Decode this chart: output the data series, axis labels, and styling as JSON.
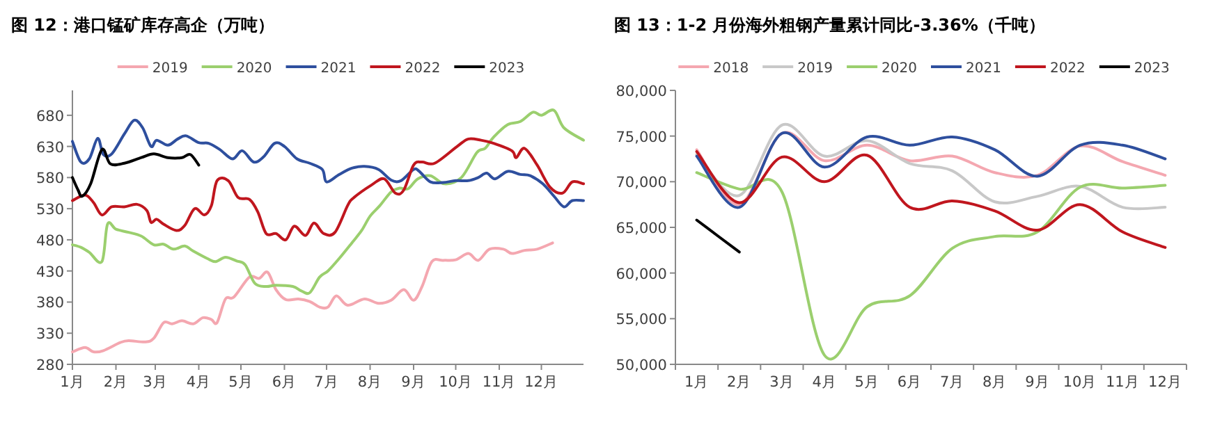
{
  "chart_data": [
    {
      "type": "line",
      "title": "图 12：港口锰矿库存高企（万吨）",
      "legend": "top",
      "xlim": [
        "--01-01",
        "--12-31"
      ],
      "xticks": [
        {
          "value": "--01-01",
          "label": "1月"
        },
        {
          "value": "--02-01",
          "label": "2月"
        },
        {
          "value": "--03-01",
          "label": "3月"
        },
        {
          "value": "--04-01",
          "label": "4月"
        },
        {
          "value": "--05-01",
          "label": "5月"
        },
        {
          "value": "--06-01",
          "label": "6月"
        },
        {
          "value": "--07-01",
          "label": "7月"
        },
        {
          "value": "--08-01",
          "label": "8月"
        },
        {
          "value": "--09-01",
          "label": "9月"
        },
        {
          "value": "--10-01",
          "label": "10月"
        },
        {
          "value": "--11-01",
          "label": "11月"
        },
        {
          "value": "--12-01",
          "label": "12月"
        }
      ],
      "ylim": [
        280,
        720
      ],
      "yticks": [
        280,
        330,
        380,
        430,
        480,
        530,
        580,
        630,
        680
      ],
      "series": [
        {
          "name": "2019",
          "color": "#f4a7b0",
          "x": [
            "--01-01",
            "--01-10",
            "--01-16",
            "--01-23",
            "--02-04",
            "--02-10",
            "--02-22",
            "--02-28",
            "--03-07",
            "--03-13",
            "--03-20",
            "--03-28",
            "--04-04",
            "--04-10",
            "--04-14",
            "--04-20",
            "--04-26",
            "--05-07",
            "--05-14",
            "--05-20",
            "--05-26",
            "--06-02",
            "--06-11",
            "--06-19",
            "--06-26",
            "--07-02",
            "--07-08",
            "--07-16",
            "--07-28",
            "--08-07",
            "--08-16",
            "--08-25",
            "--09-01",
            "--09-07",
            "--09-14",
            "--09-22",
            "--10-01",
            "--10-10",
            "--10-17",
            "--10-25",
            "--11-04",
            "--11-10",
            "--11-19",
            "--11-28",
            "--12-09"
          ],
          "values": [
            300,
            307,
            300,
            302,
            315,
            318,
            316,
            322,
            347,
            345,
            350,
            345,
            355,
            352,
            347,
            385,
            388,
            420,
            418,
            428,
            400,
            384,
            385,
            381,
            372,
            372,
            390,
            375,
            385,
            378,
            383,
            400,
            383,
            405,
            445,
            447,
            448,
            458,
            447,
            465,
            465,
            458,
            463,
            465,
            475
          ]
        },
        {
          "name": "2020",
          "color": "#9bcf6e",
          "x": [
            "--01-01",
            "--01-07",
            "--01-13",
            "--01-22",
            "--01-26",
            "--02-01",
            "--02-10",
            "--02-19",
            "--02-28",
            "--03-07",
            "--03-14",
            "--03-22",
            "--03-28",
            "--04-07",
            "--04-13",
            "--04-20",
            "--04-28",
            "--05-04",
            "--05-11",
            "--05-19",
            "--05-26",
            "--06-07",
            "--06-13",
            "--06-19",
            "--06-26",
            "--07-02",
            "--07-10",
            "--07-19",
            "--07-26",
            "--08-01",
            "--08-08",
            "--08-16",
            "--08-22",
            "--08-28",
            "--09-04",
            "--09-13",
            "--09-23",
            "--10-05",
            "--10-16",
            "--10-22",
            "--10-28",
            "--11-07",
            "--11-16",
            "--11-25",
            "--12-01",
            "--12-10",
            "--12-17",
            "--12-31"
          ],
          "values": [
            472,
            468,
            460,
            445,
            505,
            497,
            492,
            486,
            472,
            473,
            465,
            470,
            462,
            450,
            445,
            452,
            446,
            440,
            410,
            405,
            407,
            405,
            398,
            395,
            420,
            430,
            450,
            475,
            495,
            518,
            535,
            557,
            563,
            562,
            578,
            583,
            570,
            580,
            620,
            627,
            645,
            665,
            670,
            685,
            680,
            688,
            660,
            640
          ]
        },
        {
          "name": "2021",
          "color": "#2e4f9e",
          "x": [
            "--01-01",
            "--01-07",
            "--01-13",
            "--01-19",
            "--01-23",
            "--01-29",
            "--02-07",
            "--02-14",
            "--02-20",
            "--02-26",
            "--03-02",
            "--03-10",
            "--03-17",
            "--03-23",
            "--04-01",
            "--04-08",
            "--04-16",
            "--04-25",
            "--05-02",
            "--05-10",
            "--05-17",
            "--05-25",
            "--06-01",
            "--06-10",
            "--06-19",
            "--06-28",
            "--07-01",
            "--07-10",
            "--07-19",
            "--07-28",
            "--08-07",
            "--08-16",
            "--08-23",
            "--09-01",
            "--09-05",
            "--09-13",
            "--09-22",
            "--10-01",
            "--10-10",
            "--10-17",
            "--10-23",
            "--10-29",
            "--11-07",
            "--11-16",
            "--11-23",
            "--12-02",
            "--12-10",
            "--12-17",
            "--12-23",
            "--12-31"
          ],
          "values": [
            638,
            605,
            610,
            643,
            617,
            618,
            650,
            672,
            660,
            630,
            640,
            632,
            642,
            647,
            636,
            635,
            625,
            610,
            623,
            605,
            613,
            635,
            630,
            610,
            603,
            593,
            573,
            585,
            595,
            598,
            593,
            576,
            575,
            593,
            590,
            573,
            572,
            575,
            575,
            580,
            587,
            578,
            590,
            585,
            583,
            570,
            550,
            533,
            543,
            543
          ]
        },
        {
          "name": "2022",
          "color": "#c0161e",
          "x": [
            "--01-01",
            "--01-10",
            "--01-16",
            "--01-22",
            "--01-29",
            "--02-07",
            "--02-16",
            "--02-23",
            "--02-26",
            "--03-02",
            "--03-07",
            "--03-16",
            "--03-22",
            "--03-29",
            "--04-05",
            "--04-10",
            "--04-14",
            "--04-22",
            "--04-29",
            "--05-07",
            "--05-13",
            "--05-19",
            "--05-26",
            "--06-02",
            "--06-08",
            "--06-16",
            "--06-22",
            "--06-29",
            "--07-07",
            "--07-16",
            "--07-20",
            "--08-02",
            "--08-11",
            "--08-19",
            "--08-25",
            "--09-01",
            "--09-07",
            "--09-16",
            "--10-02",
            "--10-10",
            "--10-19",
            "--10-28",
            "--11-10",
            "--11-13",
            "--11-19",
            "--11-28",
            "--12-07",
            "--12-16",
            "--12-23",
            "--12-31"
          ],
          "values": [
            543,
            552,
            540,
            520,
            533,
            533,
            537,
            527,
            508,
            513,
            505,
            495,
            503,
            530,
            520,
            535,
            575,
            575,
            548,
            545,
            525,
            490,
            490,
            480,
            502,
            487,
            507,
            490,
            492,
            535,
            547,
            568,
            578,
            555,
            560,
            600,
            605,
            603,
            630,
            642,
            640,
            635,
            623,
            612,
            627,
            600,
            565,
            555,
            573,
            570
          ]
        },
        {
          "name": "2023",
          "color": "#000000",
          "x": [
            "--01-01",
            "--01-05",
            "--01-08",
            "--01-14",
            "--01-22",
            "--01-28",
            "--02-07",
            "--02-19",
            "--02-28",
            "--03-10",
            "--03-20",
            "--03-26",
            "--04-01"
          ],
          "values": [
            580,
            560,
            550,
            570,
            625,
            602,
            603,
            612,
            618,
            612,
            612,
            617,
            600
          ]
        }
      ]
    },
    {
      "type": "line",
      "title": "图 13：1-2 月份海外粗钢产量累计同比-3.36%（千吨）",
      "legend": "top",
      "categories": [
        "1月",
        "2月",
        "3月",
        "4月",
        "5月",
        "6月",
        "7月",
        "8月",
        "9月",
        "10月",
        "11月",
        "12月"
      ],
      "ylim": [
        50000,
        80000
      ],
      "yticks": [
        {
          "value": 50000,
          "label": "50,000"
        },
        {
          "value": 55000,
          "label": "55,000"
        },
        {
          "value": 60000,
          "label": "60,000"
        },
        {
          "value": 65000,
          "label": "65,000"
        },
        {
          "value": 70000,
          "label": "70,000"
        },
        {
          "value": 75000,
          "label": "75,000"
        },
        {
          "value": 80000,
          "label": "80,000"
        }
      ],
      "series": [
        {
          "name": "2018",
          "color": "#f4a7b0",
          "values": [
            73500,
            67500,
            75300,
            72300,
            74000,
            72300,
            72800,
            71000,
            70700,
            73900,
            72200,
            70700
          ]
        },
        {
          "name": "2019",
          "color": "#c8c8c8",
          "values": [
            73000,
            68500,
            76200,
            72800,
            74500,
            72000,
            71200,
            67800,
            68400,
            69500,
            67200,
            67200
          ]
        },
        {
          "name": "2020",
          "color": "#9bcf6e",
          "values": [
            71000,
            69200,
            68900,
            51000,
            56300,
            57500,
            62700,
            64000,
            64500,
            69400,
            69300,
            69600
          ]
        },
        {
          "name": "2021",
          "color": "#2e4f9e",
          "values": [
            72800,
            67200,
            75300,
            71600,
            74900,
            74000,
            74900,
            73500,
            70600,
            74000,
            74000,
            72500
          ]
        },
        {
          "name": "2022",
          "color": "#c0161e",
          "values": [
            73300,
            67700,
            72700,
            70000,
            72900,
            67200,
            67900,
            66800,
            64700,
            67500,
            64500,
            62800
          ]
        },
        {
          "name": "2023",
          "color": "#000000",
          "values": [
            65800,
            62300,
            null,
            null,
            null,
            null,
            null,
            null,
            null,
            null,
            null,
            null
          ]
        }
      ]
    }
  ]
}
